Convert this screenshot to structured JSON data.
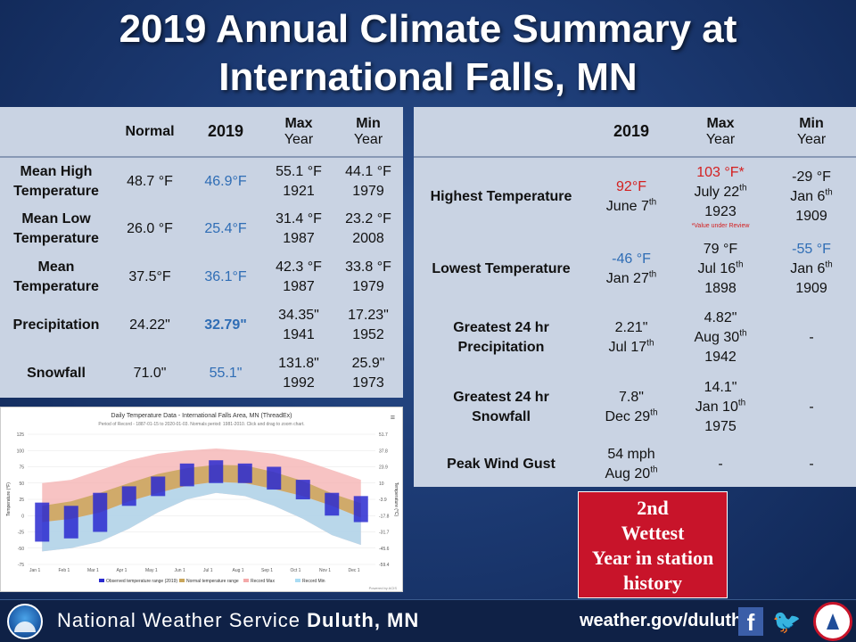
{
  "title": {
    "line1": "2019 Annual Climate Summary at",
    "line2": "International Falls, MN"
  },
  "left_table": {
    "headers": {
      "normal": "Normal",
      "y2019": "2019",
      "max_line1": "Max",
      "max_line2": "Year",
      "min_line1": "Min",
      "min_line2": "Year"
    },
    "rows": [
      {
        "label1": "Mean High",
        "label2": "Temperature",
        "normal": "48.7 °F",
        "y2019": "46.9°F",
        "max_val": "55.1 °F",
        "max_year": "1921",
        "min_val": "44.1 °F",
        "min_year": "1979"
      },
      {
        "label1": "Mean Low",
        "label2": "Temperature",
        "normal": "26.0 °F",
        "y2019": "25.4°F",
        "max_val": "31.4 °F",
        "max_year": "1987",
        "min_val": "23.2 °F",
        "min_year": "2008"
      },
      {
        "label1": "Mean",
        "label2": "Temperature",
        "normal": "37.5°F",
        "y2019": "36.1°F",
        "max_val": "42.3 °F",
        "max_year": "1987",
        "min_val": "33.8 °F",
        "min_year": "1979"
      },
      {
        "label1": "Precipitation",
        "label2": "",
        "normal": "24.22\"",
        "y2019": "32.79\"",
        "max_val": "34.35\"",
        "max_year": "1941",
        "min_val": "17.23\"",
        "min_year": "1952"
      },
      {
        "label1": "Snowfall",
        "label2": "",
        "normal": "71.0\"",
        "y2019": "55.1\"",
        "max_val": "131.8\"",
        "max_year": "1992",
        "min_val": "25.9\"",
        "min_year": "1973"
      }
    ]
  },
  "right_table": {
    "headers": {
      "y2019": "2019",
      "max_line1": "Max",
      "max_line2": "Year",
      "min_line1": "Min",
      "min_line2": "Year"
    },
    "rows": {
      "highest": {
        "label": "Highest Temperature",
        "y2019_val": "92°F",
        "y2019_date": "June 7",
        "y2019_sup": "th",
        "max_val": "103 °F*",
        "max_date": "July 22",
        "max_sup": "th",
        "max_year": "1923",
        "max_note": "*Value under Review",
        "min_val": "-29 °F",
        "min_date": "Jan 6",
        "min_sup": "th",
        "min_year": "1909"
      },
      "lowest": {
        "label": "Lowest Temperature",
        "y2019_val": "-46 °F",
        "y2019_date": "Jan 27",
        "y2019_sup": "th",
        "max_val": "79 °F",
        "max_date": "Jul 16",
        "max_sup": "th",
        "max_year": "1898",
        "min_val": "-55 °F",
        "min_date": "Jan 6",
        "min_sup": "th",
        "min_year": "1909"
      },
      "precip": {
        "label1": "Greatest 24 hr",
        "label2": "Precipitation",
        "y2019_val": "2.21\"",
        "y2019_date": "Jul 17",
        "y2019_sup": "th",
        "max_val": "4.82\"",
        "max_date": "Aug 30",
        "max_sup": "th",
        "max_year": "1942",
        "min_val": "-"
      },
      "snow": {
        "label1": "Greatest 24 hr",
        "label2": "Snowfall",
        "y2019_val": "7.8\"",
        "y2019_date": "Dec 29",
        "y2019_sup": "th",
        "max_val": "14.1\"",
        "max_date": "Jan 10",
        "max_sup": "th",
        "max_year": "1975",
        "min_val": "-"
      },
      "wind": {
        "label": "Peak Wind Gust",
        "y2019_val": "54 mph",
        "y2019_date": "Aug 20",
        "y2019_sup": "th",
        "max_val": "-",
        "min_val": "-"
      }
    }
  },
  "chart": {
    "title": "Daily Temperature Data - International Falls Area, MN (ThreadEx)",
    "subtitle": "Period of Record - 1887-01-15 to 2020-01-03. Normals period: 1981-2010. Click and drag to zoom chart.",
    "menu_icon": "hamburger-menu-icon",
    "credit": "Powered by ACIS",
    "ylabel_left": "Temperature (°F)",
    "ylabel_right": "Temperature (°C)",
    "y_ticks_f": [
      "125",
      "100",
      "75",
      "50",
      "25",
      "0",
      "-25",
      "-50",
      "-75"
    ],
    "y_ticks_c": [
      "51.7",
      "37.8",
      "23.9",
      "10",
      "-3.9",
      "-17.8",
      "-31.7",
      "-45.6",
      "-59.4"
    ],
    "x_ticks": [
      "Jan 1",
      "Feb 1",
      "Mar 1",
      "Apr 1",
      "May 1",
      "Jun 1",
      "Jul 1",
      "Aug 1",
      "Sep 1",
      "Oct 1",
      "Nov 1",
      "Dec 1"
    ],
    "legend": [
      "Observed temperature range (2019)",
      "Normal temperature range",
      "Record Max",
      "Record Min"
    ],
    "colors": {
      "observed": "#2a2ad0",
      "normal": "#c9a65a",
      "record_max": "#f4a9a9",
      "record_min": "#a9dcf4"
    }
  },
  "chart_data": {
    "type": "area",
    "title": "Daily Temperature Data - International Falls Area, MN (ThreadEx)",
    "xlabel": "",
    "ylabel": "Temperature (°F)",
    "ylim": [
      -75,
      125
    ],
    "categories": [
      "Jan 1",
      "Feb 1",
      "Mar 1",
      "Apr 1",
      "May 1",
      "Jun 1",
      "Jul 1",
      "Aug 1",
      "Sep 1",
      "Oct 1",
      "Nov 1",
      "Dec 1"
    ],
    "series": [
      {
        "name": "Record Max",
        "values": [
          50,
          55,
          70,
          85,
          95,
          100,
          103,
          100,
          95,
          85,
          70,
          55
        ]
      },
      {
        "name": "Record Min",
        "values": [
          -55,
          -50,
          -40,
          -20,
          5,
          25,
          35,
          30,
          15,
          -5,
          -30,
          -45
        ]
      },
      {
        "name": "Normal temperature range",
        "values": [
          [
            -10,
            15
          ],
          [
            -5,
            22
          ],
          [
            5,
            35
          ],
          [
            22,
            50
          ],
          [
            35,
            64
          ],
          [
            46,
            73
          ],
          [
            52,
            78
          ],
          [
            50,
            77
          ],
          [
            41,
            67
          ],
          [
            30,
            53
          ],
          [
            15,
            34
          ],
          [
            -3,
            19
          ]
        ]
      },
      {
        "name": "Observed temperature range (2019)",
        "values": [
          [
            -40,
            20
          ],
          [
            -35,
            15
          ],
          [
            -25,
            35
          ],
          [
            15,
            45
          ],
          [
            30,
            60
          ],
          [
            45,
            80
          ],
          [
            50,
            85
          ],
          [
            50,
            80
          ],
          [
            40,
            75
          ],
          [
            25,
            55
          ],
          [
            0,
            35
          ],
          [
            -10,
            30
          ]
        ]
      }
    ]
  },
  "badge": {
    "line1": "2nd",
    "line2": "Wettest",
    "line3": "Year in station",
    "line4": "history"
  },
  "footer": {
    "nws_prefix": "National Weather Service",
    "nws_office": "Duluth, MN",
    "website": "weather.gov/duluth",
    "facebook_glyph": "f",
    "twitter_glyph": "🐦"
  }
}
